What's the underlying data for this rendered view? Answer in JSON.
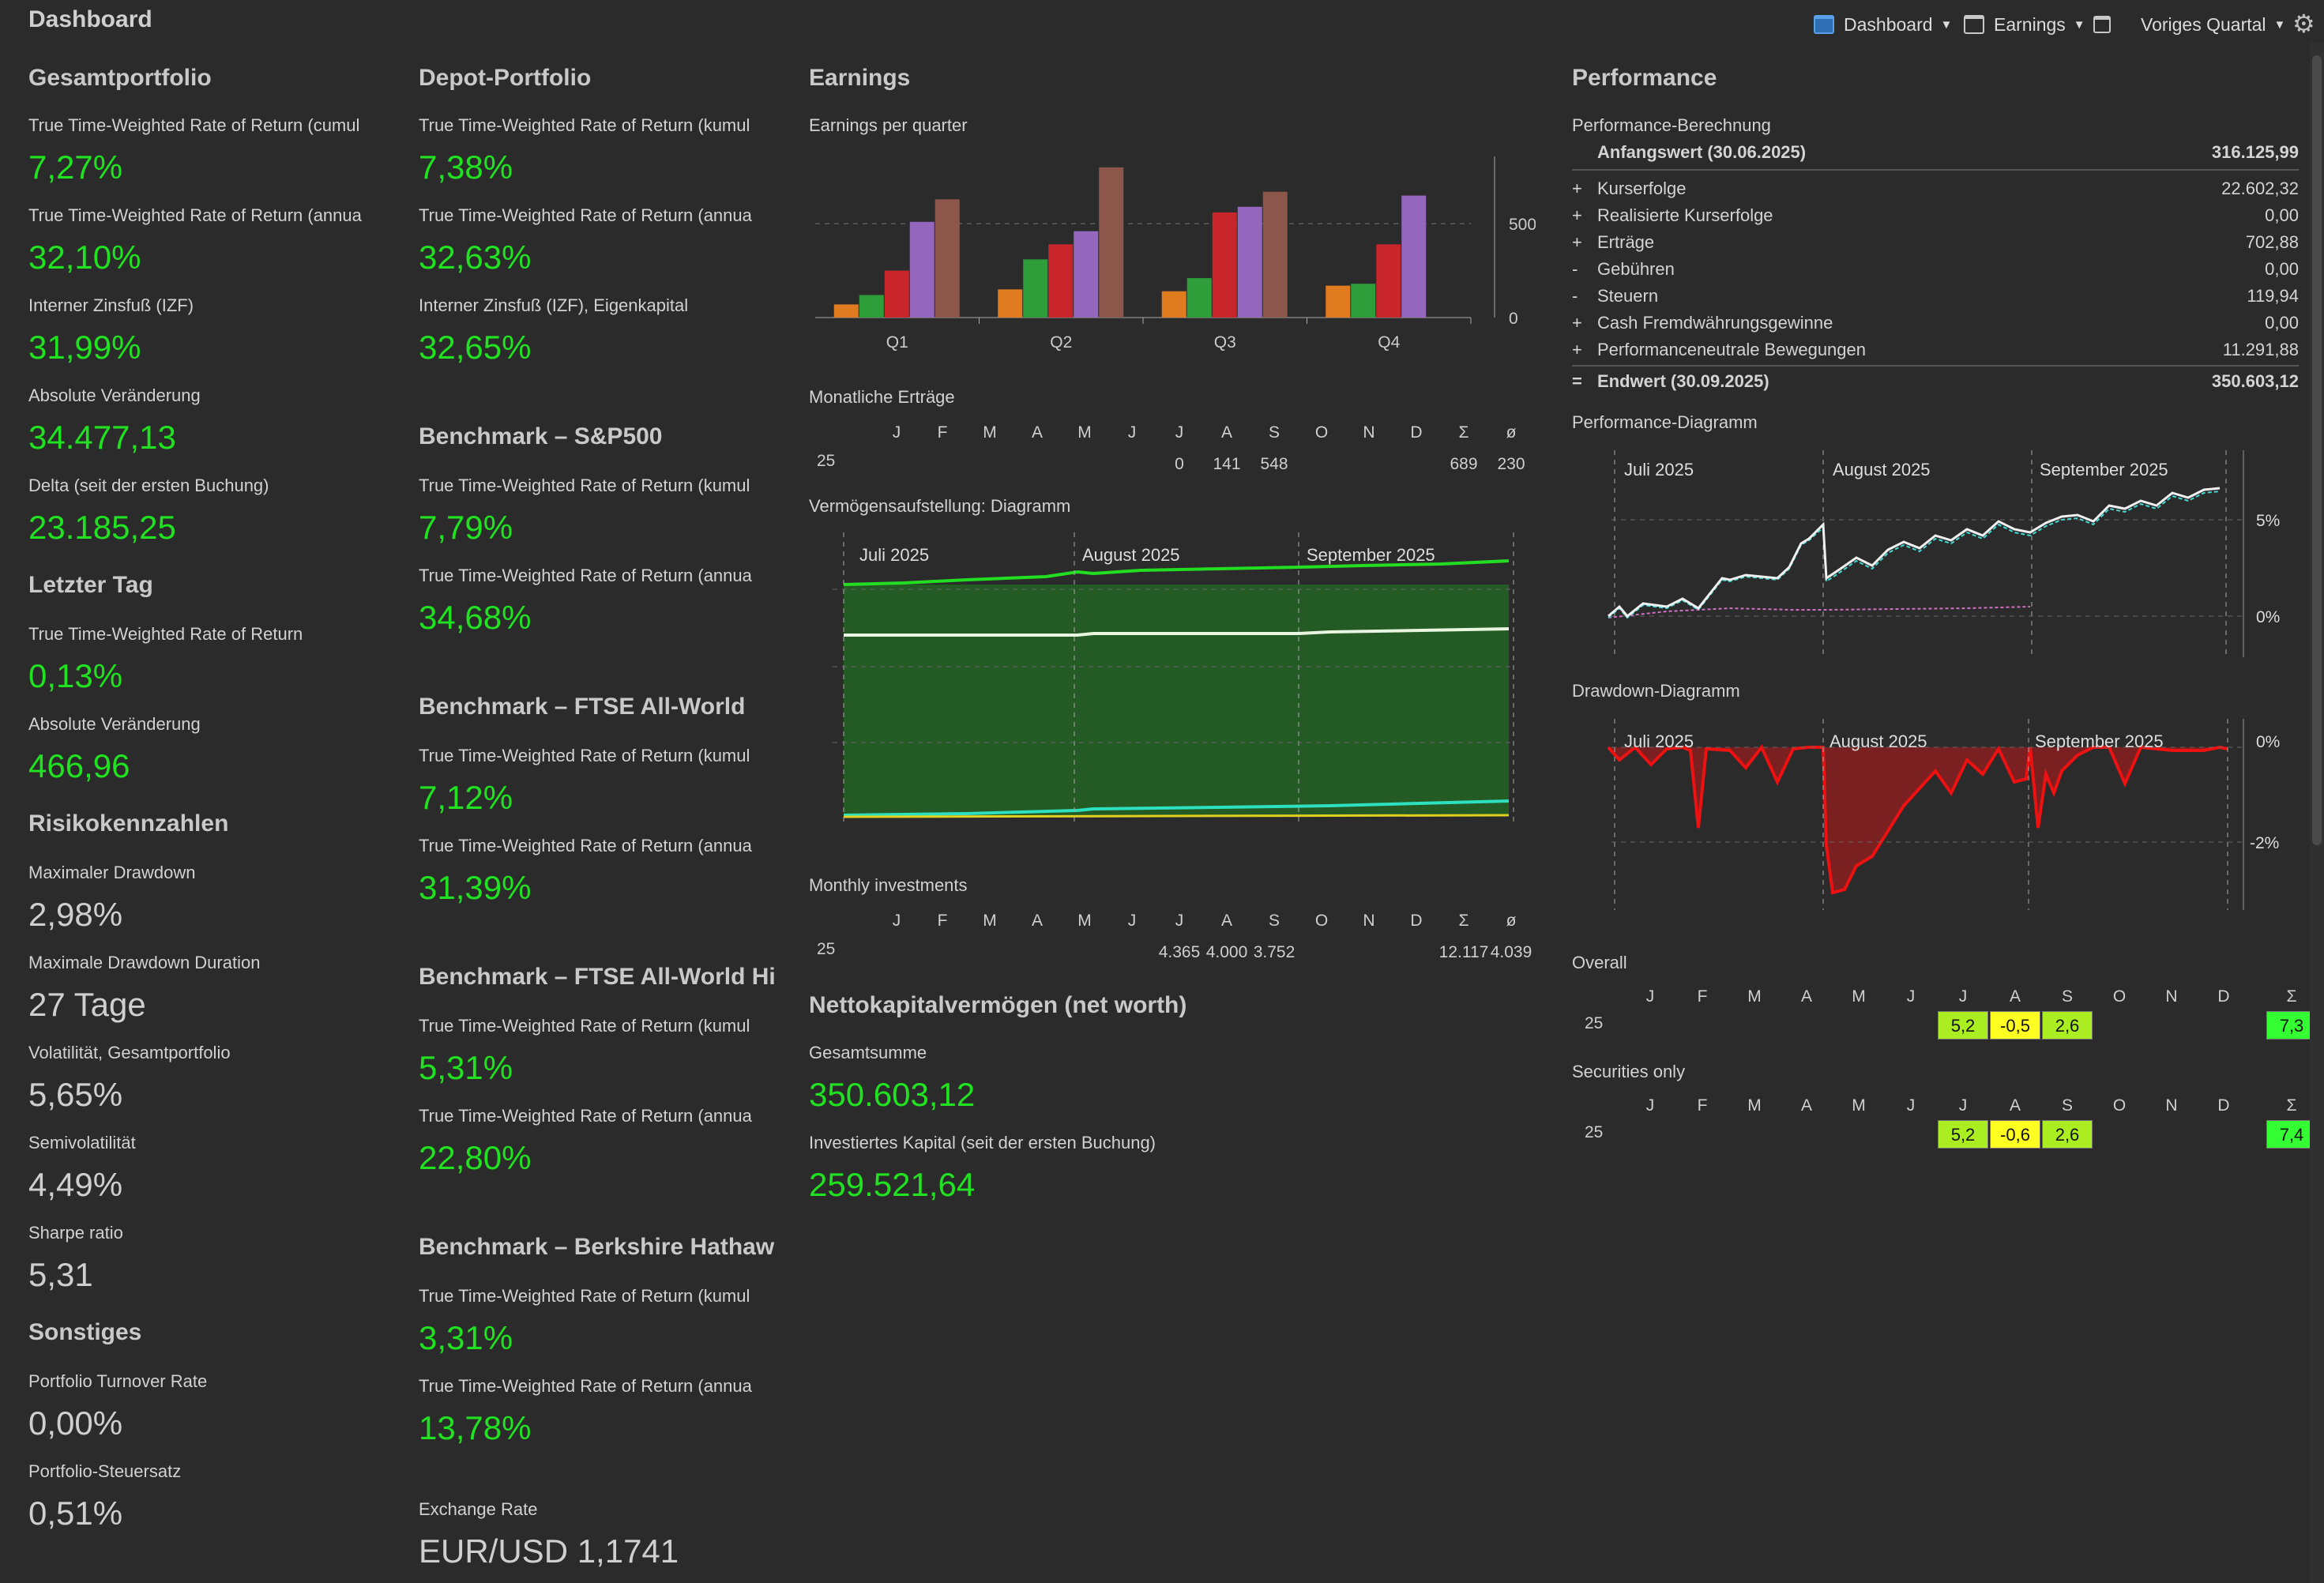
{
  "header": {
    "title": "Dashboard",
    "menu_dashboard": "Dashboard",
    "menu_earnings": "Earnings",
    "period": "Voriges Quartal"
  },
  "gesamt": {
    "title": "Gesamtportfolio",
    "ttwror_cum_label": "True Time-Weighted Rate of Return (cumul",
    "ttwror_cum_value": "7,27%",
    "ttwror_ann_label": "True Time-Weighted Rate of Return (annua",
    "ttwror_ann_value": "32,10%",
    "izf_label": "Interner Zinsfuß (IZF)",
    "izf_value": "31,99%",
    "abs_label": "Absolute Veränderung",
    "abs_value": "34.477,13",
    "delta_label": "Delta (seit der ersten Buchung)",
    "delta_value": "23.185,25"
  },
  "letzter_tag": {
    "title": "Letzter Tag",
    "ttwror_label": "True Time-Weighted Rate of Return",
    "ttwror_value": "0,13%",
    "abs_label": "Absolute Veränderung",
    "abs_value": "466,96"
  },
  "risiko": {
    "title": "Risikokennzahlen",
    "max_dd_label": "Maximaler Drawdown",
    "max_dd_value": "2,98%",
    "max_dd_dur_label": "Maximale Drawdown Duration",
    "max_dd_dur_value": "27 Tage",
    "vol_label": "Volatilität, Gesamtportfolio",
    "vol_value": "5,65%",
    "semivol_label": "Semivolatilität",
    "semivol_value": "4,49%",
    "sharpe_label": "Sharpe ratio",
    "sharpe_value": "5,31"
  },
  "sonstiges": {
    "title": "Sonstiges",
    "turnover_label": "Portfolio Turnover Rate",
    "turnover_value": "0,00%",
    "tax_label": "Portfolio-Steuersatz",
    "tax_value": "0,51%"
  },
  "depot": {
    "title": "Depot-Portfolio",
    "ttwror_cum_label": "True Time-Weighted Rate of Return (kumul",
    "ttwror_cum_value": "7,38%",
    "ttwror_ann_label": "True Time-Weighted Rate of Return (annua",
    "ttwror_ann_value": "32,63%",
    "izf_label": "Interner Zinsfuß (IZF), Eigenkapital",
    "izf_value": "32,65%"
  },
  "benchmarks": [
    {
      "title": "Benchmark – S&P500",
      "cum_label": "True Time-Weighted Rate of Return (kumul",
      "cum_value": "7,79%",
      "ann_label": "True Time-Weighted Rate of Return (annua",
      "ann_value": "34,68%"
    },
    {
      "title": "Benchmark – FTSE All-World",
      "cum_label": "True Time-Weighted Rate of Return (kumul",
      "cum_value": "7,12%",
      "ann_label": "True Time-Weighted Rate of Return (annua",
      "ann_value": "31,39%"
    },
    {
      "title": "Benchmark – FTSE All-World Hi",
      "cum_label": "True Time-Weighted Rate of Return (kumul",
      "cum_value": "5,31%",
      "ann_label": "True Time-Weighted Rate of Return (annua",
      "ann_value": "22,80%"
    },
    {
      "title": "Benchmark – Berkshire Hathaw",
      "cum_label": "True Time-Weighted Rate of Return (kumul",
      "cum_value": "3,31%",
      "ann_label": "True Time-Weighted Rate of Return (annua",
      "ann_value": "13,78%"
    }
  ],
  "exchange": {
    "label": "Exchange Rate",
    "value": "EUR/USD 1,1741"
  },
  "earnings": {
    "title": "Earnings",
    "per_quarter_label": "Earnings per quarter",
    "monthly_label": "Monatliche Erträge",
    "months": [
      "J",
      "F",
      "M",
      "A",
      "M",
      "J",
      "J",
      "A",
      "S",
      "O",
      "N",
      "D",
      "Σ",
      "ø"
    ],
    "year": "25",
    "monthly_values": [
      "",
      "",
      "",
      "",
      "",
      "",
      "0",
      "141",
      "548",
      "",
      "",
      "",
      "689",
      "230"
    ],
    "alloc_label": "Vermögensaufstellung: Diagramm",
    "alloc_months": [
      "Juli 2025",
      "August 2025",
      "September 2025"
    ],
    "invest_label": "Monthly investments",
    "invest_values": [
      "",
      "",
      "",
      "",
      "",
      "",
      "4.365",
      "4.000",
      "3.752",
      "",
      "",
      "",
      "12.117",
      "4.039"
    ]
  },
  "networth": {
    "title": "Nettokapitalvermögen (net worth)",
    "total_label": "Gesamtsumme",
    "total_value": "350.603,12",
    "invested_label": "Investiertes Kapital (seit der ersten Buchung)",
    "invested_value": "259.521,64"
  },
  "performance": {
    "title": "Performance",
    "calc_label": "Performance-Berechnung",
    "start_label": "Anfangswert (30.06.2025)",
    "start_value": "316.125,99",
    "rows": [
      {
        "sign": "+",
        "name": "Kurserfolge",
        "value": "22.602,32"
      },
      {
        "sign": "+",
        "name": "Realisierte Kurserfolge",
        "value": "0,00"
      },
      {
        "sign": "+",
        "name": "Erträge",
        "value": "702,88"
      },
      {
        "sign": "-",
        "name": "Gebühren",
        "value": "0,00"
      },
      {
        "sign": "-",
        "name": "Steuern",
        "value": "119,94"
      },
      {
        "sign": "+",
        "name": "Cash Fremdwährungsgewinne",
        "value": "0,00"
      },
      {
        "sign": "+",
        "name": "Performanceneutrale Bewegungen",
        "value": "11.291,88"
      }
    ],
    "end_sign": "=",
    "end_label": "Endwert (30.09.2025)",
    "end_value": "350.603,12",
    "perf_chart_label": "Performance-Diagramm",
    "drawdown_label": "Drawdown-Diagramm",
    "chart_months": [
      "Juli 2025",
      "August 2025",
      "September 2025"
    ],
    "perf_ticks": [
      "5%",
      "0%"
    ],
    "dd_ticks": [
      "0%",
      "-2%"
    ],
    "overall_label": "Overall",
    "securities_label": "Securities only",
    "months": [
      "J",
      "F",
      "M",
      "A",
      "M",
      "J",
      "J",
      "A",
      "S",
      "O",
      "N",
      "D",
      "Σ"
    ],
    "year": "25",
    "overall": {
      "jul": "5,2",
      "aug": "-0,5",
      "sep": "2,6",
      "sum": "7,3"
    },
    "securities": {
      "jul": "5,2",
      "aug": "-0,6",
      "sep": "2,6",
      "sum": "7,4"
    },
    "colors": {
      "positive": "#33ff33",
      "slightly_positive": "#aaee22",
      "neutral": "#ffff22"
    }
  },
  "chart_data": [
    {
      "type": "bar",
      "title": "Earnings per quarter",
      "categories": [
        "Q1",
        "Q2",
        "Q3",
        "Q4"
      ],
      "series": [
        {
          "values": [
            70,
            150,
            140,
            170
          ],
          "color": "#e07b20"
        },
        {
          "values": [
            120,
            310,
            210,
            180
          ],
          "color": "#2e9e3a"
        },
        {
          "values": [
            250,
            390,
            560,
            390
          ],
          "color": "#c8262b"
        },
        {
          "values": [
            510,
            460,
            590,
            650
          ],
          "color": "#9466bd"
        },
        {
          "values": [
            630,
            800,
            670,
            0
          ],
          "color": "#8c564b"
        }
      ],
      "yticks": [
        "500",
        "0"
      ],
      "ylim": [
        0,
        850
      ]
    }
  ]
}
